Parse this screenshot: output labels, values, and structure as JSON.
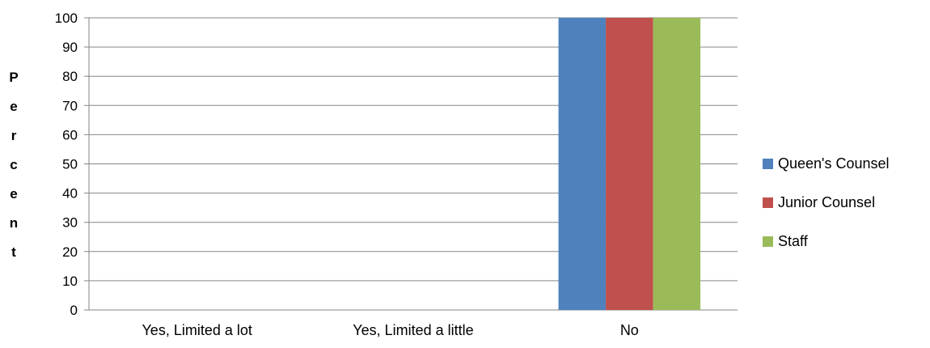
{
  "chart_data": {
    "type": "bar",
    "categories": [
      "Yes, Limited a lot",
      "Yes, Limited a little",
      "No"
    ],
    "series": [
      {
        "name": "Queen's Counsel",
        "color": "#4f81bd",
        "values": [
          0,
          0,
          100
        ]
      },
      {
        "name": "Junior Counsel",
        "color": "#c0504d",
        "values": [
          0,
          0,
          100
        ]
      },
      {
        "name": "Staff",
        "color": "#9bbb59",
        "values": [
          0,
          0,
          100
        ]
      }
    ],
    "ylabel": "Percent",
    "ylim": [
      0,
      100
    ],
    "yticks": [
      0,
      10,
      20,
      30,
      40,
      50,
      60,
      70,
      80,
      90,
      100
    ],
    "grid": true,
    "legend": "right"
  }
}
